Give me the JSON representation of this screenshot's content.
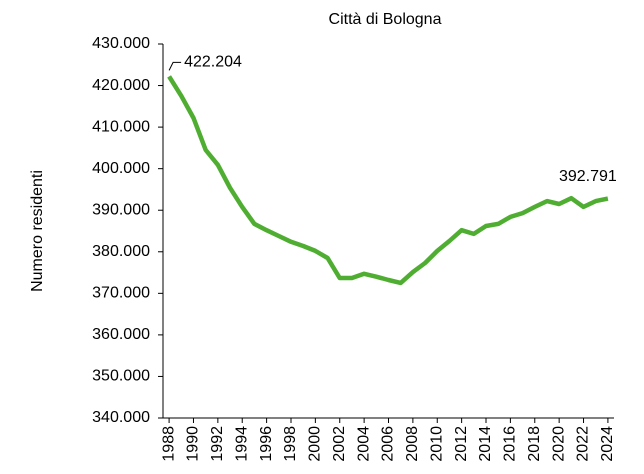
{
  "chart_data": {
    "type": "line",
    "title": "Città di Bologna",
    "y_label": "Numero  residenti",
    "x": [
      1988,
      1989,
      1990,
      1991,
      1992,
      1993,
      1994,
      1995,
      1996,
      1997,
      1998,
      1999,
      2000,
      2001,
      2002,
      2003,
      2004,
      2005,
      2006,
      2007,
      2008,
      2009,
      2010,
      2011,
      2012,
      2013,
      2014,
      2015,
      2016,
      2017,
      2018,
      2019,
      2020,
      2021,
      2022,
      2023,
      2024
    ],
    "series": [
      {
        "name": "Numero residenti",
        "color": "#4fae32",
        "values": [
          422204,
          417500,
          412200,
          404500,
          400900,
          395400,
          390800,
          386700,
          385200,
          383800,
          382400,
          381400,
          380200,
          378500,
          373700,
          373700,
          374700,
          374000,
          373200,
          372500,
          375100,
          377300,
          380200,
          382600,
          385200,
          384300,
          386200,
          386700,
          388400,
          389300,
          390800,
          392200,
          391500,
          392900,
          390800,
          392200,
          392791
        ],
        "value_labels": [
          "422.204",
          null,
          null,
          null,
          null,
          null,
          null,
          null,
          null,
          null,
          null,
          null,
          null,
          null,
          null,
          null,
          null,
          null,
          null,
          null,
          null,
          null,
          null,
          null,
          null,
          null,
          null,
          null,
          null,
          null,
          null,
          null,
          null,
          null,
          null,
          null,
          "392.791"
        ]
      }
    ],
    "xlim": [
      1987.5,
      2024.5
    ],
    "xticks": [
      1988,
      1990,
      1992,
      1994,
      1996,
      1998,
      2000,
      2002,
      2004,
      2006,
      2008,
      2010,
      2012,
      2014,
      2016,
      2018,
      2020,
      2022,
      2024
    ],
    "ylim": [
      340000,
      430000
    ],
    "yticks": [
      {
        "value": 340000,
        "label": "340.000"
      },
      {
        "value": 350000,
        "label": "350.000"
      },
      {
        "value": 360000,
        "label": "360.000"
      },
      {
        "value": 370000,
        "label": "370.000"
      },
      {
        "value": 380000,
        "label": "380.000"
      },
      {
        "value": 390000,
        "label": "390.000"
      },
      {
        "value": 400000,
        "label": "400.000"
      },
      {
        "value": 410000,
        "label": "410.000"
      },
      {
        "value": 420000,
        "label": "420.000"
      },
      {
        "value": 430000,
        "label": "430.000"
      }
    ],
    "grid": false
  }
}
